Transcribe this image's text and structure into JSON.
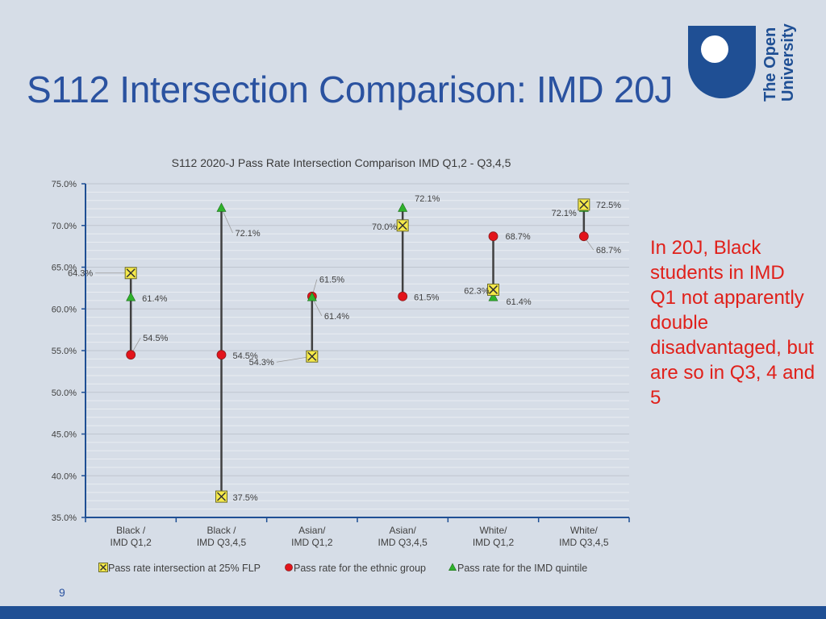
{
  "slide": {
    "title": "S112 Intersection Comparison: IMD 20J",
    "logo_line1": "The Open",
    "logo_line2": "University",
    "callout": "In 20J, Black students in IMD Q1 not apparently double disadvantaged, but are so in Q3, 4 and 5",
    "page_number": "9",
    "colors": {
      "title": "#2a52a0",
      "brand": "#1f4f94",
      "callout": "#e0201a",
      "background": "#d6dde7"
    }
  },
  "chart_data": {
    "type": "scatter",
    "title": "S112 2020-J Pass Rate Intersection Comparison IMD Q1,2 - Q3,4,5",
    "xlabel": "",
    "ylabel": "",
    "ylim": [
      35,
      75
    ],
    "y_ticks": [
      "75.0%",
      "70.0%",
      "65.0%",
      "60.0%",
      "55.0%",
      "50.0%",
      "45.0%",
      "40.0%",
      "35.0%"
    ],
    "grid": true,
    "legend_position": "bottom",
    "categories": [
      {
        "line1": "Black /",
        "line2": "IMD Q1,2"
      },
      {
        "line1": "Black /",
        "line2": "IMD Q3,4,5"
      },
      {
        "line1": "Asian/",
        "line2": "IMD Q1,2"
      },
      {
        "line1": "Asian/",
        "line2": "IMD Q3,4,5"
      },
      {
        "line1": "White/",
        "line2": "IMD Q1,2"
      },
      {
        "line1": "White/",
        "line2": "IMD Q3,4,5"
      }
    ],
    "series": [
      {
        "name": "Pass rate intersection at 25% FLP",
        "marker": "box-x",
        "color": "#f5e94a",
        "values": [
          64.3,
          37.5,
          54.3,
          70.0,
          62.3,
          72.5
        ],
        "labels": [
          "64.3%",
          "37.5%",
          "54.3%",
          "70.0%",
          "62.3%",
          "72.5%"
        ]
      },
      {
        "name": "Pass rate for the ethnic group",
        "marker": "circle",
        "color": "#e3141b",
        "values": [
          54.5,
          54.5,
          61.5,
          61.5,
          68.7,
          68.7
        ],
        "labels": [
          "54.5%",
          "54.5%",
          "61.5%",
          "61.5%",
          "68.7%",
          "68.7%"
        ]
      },
      {
        "name": "Pass rate for the IMD quintile",
        "marker": "triangle",
        "color": "#2fb22c",
        "values": [
          61.4,
          72.1,
          61.4,
          72.1,
          61.4,
          72.1
        ],
        "labels": [
          "61.4%",
          "72.1%",
          "61.4%",
          "72.1%",
          "61.4%",
          "72.1%"
        ]
      }
    ]
  }
}
